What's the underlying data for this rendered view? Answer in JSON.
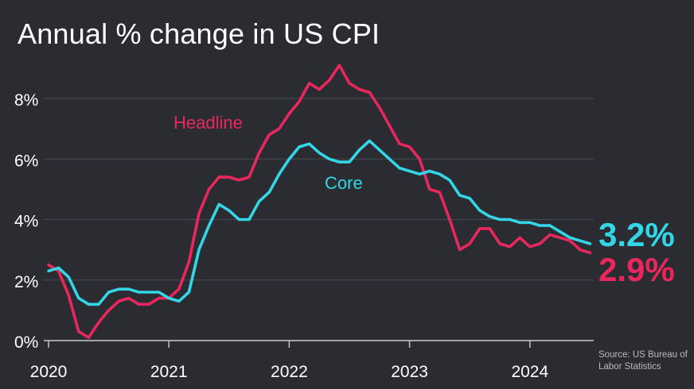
{
  "chart_data": {
    "type": "line",
    "title": "Annual % change in US CPI",
    "source": "Source: US Bureau of Labor Statistics",
    "ylim": [
      0,
      9
    ],
    "y_ticks": [
      {
        "value": 0,
        "label": "0%"
      },
      {
        "value": 2,
        "label": "2%"
      },
      {
        "value": 4,
        "label": "4%"
      },
      {
        "value": 6,
        "label": "6%"
      },
      {
        "value": 8,
        "label": "8%"
      }
    ],
    "x_ticks": [
      {
        "value": 0,
        "label": "2020"
      },
      {
        "value": 12,
        "label": "2021"
      },
      {
        "value": 24,
        "label": "2022"
      },
      {
        "value": 36,
        "label": "2023"
      },
      {
        "value": 48,
        "label": "2024"
      }
    ],
    "x_start": "2020-01",
    "x_end": "2024-07",
    "grid": true,
    "series": [
      {
        "name": "Headline",
        "color": "#e8275d",
        "end_label": "2.9%",
        "values": [
          2.5,
          2.3,
          1.5,
          0.3,
          0.1,
          0.6,
          1.0,
          1.3,
          1.4,
          1.2,
          1.2,
          1.4,
          1.4,
          1.7,
          2.6,
          4.2,
          5.0,
          5.4,
          5.4,
          5.3,
          5.4,
          6.2,
          6.8,
          7.0,
          7.5,
          7.9,
          8.5,
          8.3,
          8.6,
          9.1,
          8.5,
          8.3,
          8.2,
          7.7,
          7.1,
          6.5,
          6.4,
          6.0,
          5.0,
          4.9,
          4.0,
          3.0,
          3.2,
          3.7,
          3.7,
          3.2,
          3.1,
          3.4,
          3.1,
          3.2,
          3.5,
          3.4,
          3.3,
          3.0,
          2.9
        ]
      },
      {
        "name": "Core",
        "color": "#33d6e6",
        "end_label": "3.2%",
        "values": [
          2.3,
          2.4,
          2.1,
          1.4,
          1.2,
          1.2,
          1.6,
          1.7,
          1.7,
          1.6,
          1.6,
          1.6,
          1.4,
          1.3,
          1.6,
          3.0,
          3.8,
          4.5,
          4.3,
          4.0,
          4.0,
          4.6,
          4.9,
          5.5,
          6.0,
          6.4,
          6.5,
          6.2,
          6.0,
          5.9,
          5.9,
          6.3,
          6.6,
          6.3,
          6.0,
          5.7,
          5.6,
          5.5,
          5.6,
          5.5,
          5.3,
          4.8,
          4.7,
          4.3,
          4.1,
          4.0,
          4.0,
          3.9,
          3.9,
          3.8,
          3.8,
          3.6,
          3.4,
          3.3,
          3.2
        ]
      }
    ]
  }
}
